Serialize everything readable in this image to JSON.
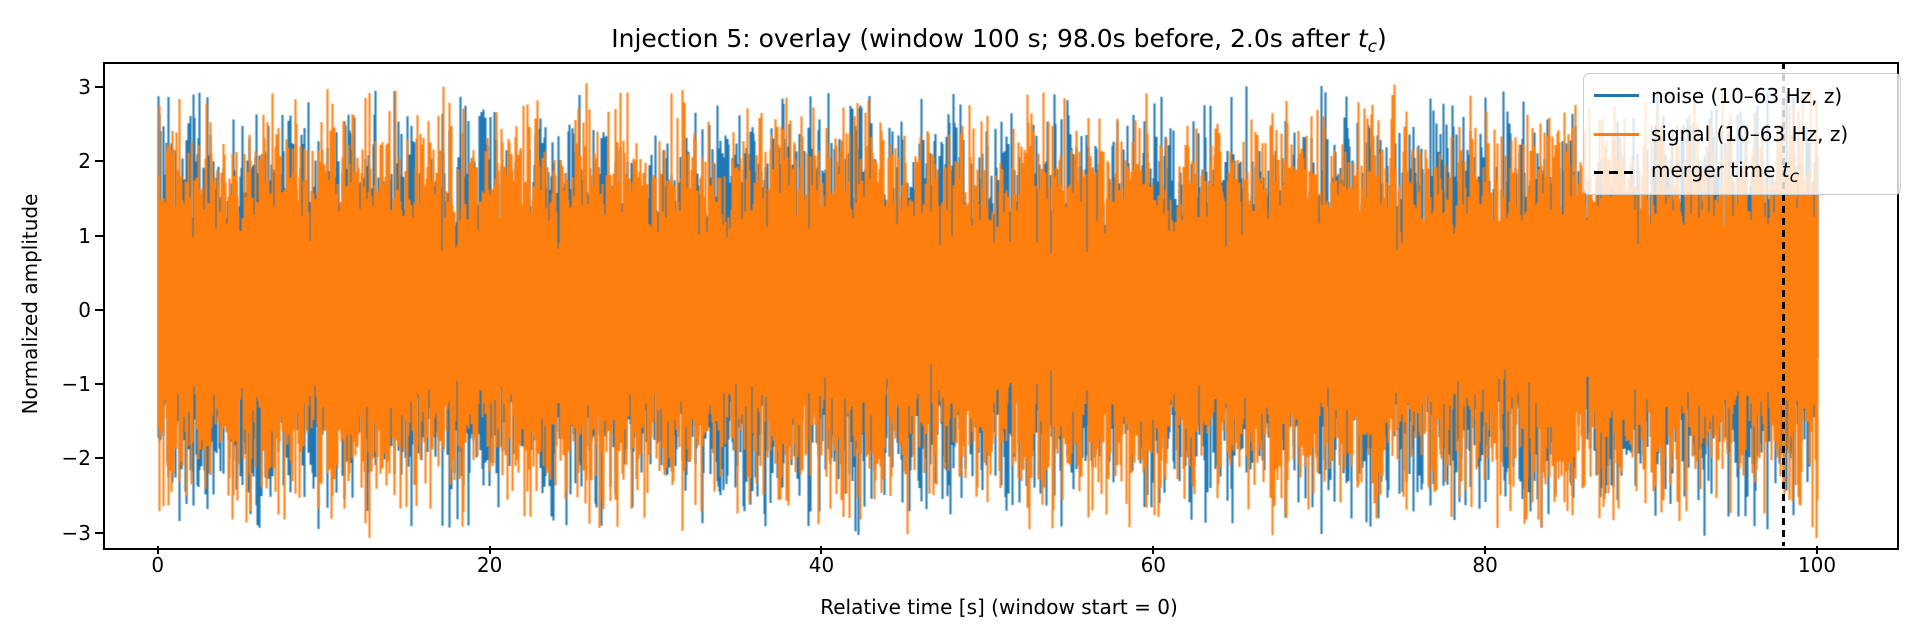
{
  "figure": {
    "title": {
      "prefix": "Injection 5: overlay (window 100 s; 98.0s before, 2.0s after ",
      "var": "t",
      "sub": "c",
      "suffix": ")"
    },
    "xlabel": "Relative time [s] (window start = 0)",
    "ylabel": "Normalized amplitude"
  },
  "legend": {
    "position": "upper right",
    "entries": [
      {
        "label": "noise (10–63 Hz, z)",
        "handle": "line",
        "color": "#1f77b4",
        "math_var": "",
        "math_sub": ""
      },
      {
        "label": "signal (10–63 Hz, z)",
        "handle": "line",
        "color": "#ff7f0e",
        "math_var": "",
        "math_sub": ""
      },
      {
        "label": "merger time ",
        "handle": "dashed-line",
        "color": "#000000",
        "math_var": "t",
        "math_sub": "c"
      }
    ]
  },
  "chart_data": {
    "type": "line",
    "title": "Injection 5: overlay (window 100 s; 98.0s before, 2.0s after t_c)",
    "xlabel": "Relative time [s] (window start = 0)",
    "ylabel": "Normalized amplitude",
    "xlim": [
      -3.3,
      104.7
    ],
    "ylim": [
      -3.18,
      3.34
    ],
    "xticks": [
      0,
      20,
      40,
      60,
      80,
      100
    ],
    "yticks": [
      3,
      2,
      1,
      0,
      -1,
      -2,
      -3
    ],
    "grid": false,
    "legend_position": "upper right",
    "series": [
      {
        "name": "noise (10–63 Hz, z)",
        "color": "#1f77b4",
        "kind": "band-limited stochastic time series (bandpass 10–63 Hz, z-scored)",
        "band_hz": [
          10,
          63
        ],
        "t_range_s": [
          0,
          100
        ],
        "std": 1,
        "mean": 0,
        "dense_core_amplitude": 1.2,
        "peak_amplitude_range": [
          -2.9,
          3.05
        ],
        "draw_order": 1
      },
      {
        "name": "signal (10–63 Hz, z)",
        "color": "#ff7f0e",
        "kind": "band-limited stochastic time series (bandpass 10–63 Hz, z-scored)",
        "band_hz": [
          10,
          63
        ],
        "t_range_s": [
          0,
          100
        ],
        "std": 1,
        "mean": 0,
        "dense_core_amplitude": 1.2,
        "peak_amplitude_range": [
          -2.9,
          2.9
        ],
        "draw_order": 2
      }
    ],
    "annotations": [
      {
        "type": "vline",
        "x": 98.0,
        "color": "#000000",
        "linestyle": "dashed",
        "label": "merger time t_c"
      }
    ]
  }
}
